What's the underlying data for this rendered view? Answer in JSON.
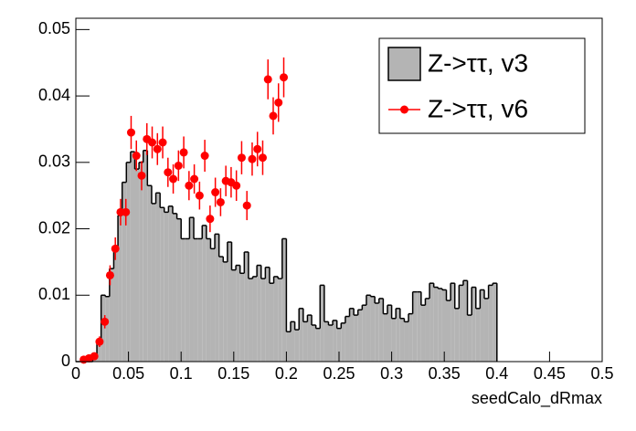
{
  "chart_data": {
    "type": "histogram",
    "xlabel": "seedCalo_dRmax",
    "xlim": [
      0,
      0.5
    ],
    "ylim": [
      0,
      0.0517
    ],
    "xticks": [
      0,
      0.05,
      0.1,
      0.15,
      0.2,
      0.25,
      0.3,
      0.35,
      0.4,
      0.45,
      0.5
    ],
    "yticks": [
      0,
      0.01,
      0.02,
      0.03,
      0.04,
      0.05
    ],
    "series": [
      {
        "name": "Z->ττ, v3",
        "type": "histogram",
        "color": "#b4b4b4",
        "bins": [
          0,
          0.004,
          0.008,
          0.012,
          0.016,
          0.02,
          0.024,
          0.028,
          0.032,
          0.036,
          0.04,
          0.044,
          0.048,
          0.052,
          0.056,
          0.06,
          0.064,
          0.068,
          0.072,
          0.076,
          0.08,
          0.084,
          0.088,
          0.092,
          0.096,
          0.1,
          0.104,
          0.108,
          0.112,
          0.116,
          0.12,
          0.124,
          0.128,
          0.132,
          0.136,
          0.14,
          0.144,
          0.148,
          0.152,
          0.156,
          0.16,
          0.164,
          0.168,
          0.172,
          0.176,
          0.18,
          0.184,
          0.188,
          0.192,
          0.196,
          0.2,
          0.204,
          0.208,
          0.212,
          0.216,
          0.22,
          0.224,
          0.228,
          0.232,
          0.236,
          0.24,
          0.244,
          0.248,
          0.252,
          0.256,
          0.26,
          0.264,
          0.268,
          0.272,
          0.276,
          0.28,
          0.284,
          0.288,
          0.292,
          0.296,
          0.3,
          0.304,
          0.308,
          0.312,
          0.316,
          0.32,
          0.324,
          0.328,
          0.332,
          0.336,
          0.34,
          0.344,
          0.348,
          0.352,
          0.356,
          0.36,
          0.364,
          0.368,
          0.372,
          0.376,
          0.38,
          0.384,
          0.388,
          0.392,
          0.396,
          0.4
        ],
        "values": [
          0,
          0,
          0,
          0,
          0.001,
          0.003,
          0.01,
          0.0098,
          0.014,
          0.017,
          0.022,
          0.027,
          0.03,
          0.0316,
          0.029,
          0.03,
          0.0318,
          0.0265,
          0.0238,
          0.0254,
          0.0232,
          0.0225,
          0.0234,
          0.0223,
          0.0215,
          0.0185,
          0.0185,
          0.0217,
          0.0185,
          0.0185,
          0.0205,
          0.0185,
          0.017,
          0.0192,
          0.0158,
          0.015,
          0.018,
          0.0138,
          0.0145,
          0.0133,
          0.0165,
          0.0125,
          0.0128,
          0.0145,
          0.0125,
          0.0142,
          0.0118,
          0.0128,
          0.0125,
          0.0185,
          0.0045,
          0.006,
          0.0048,
          0.008,
          0.006,
          0.007,
          0.0055,
          0.005,
          0.0115,
          0.006,
          0.0055,
          0.0062,
          0.005,
          0.0058,
          0.0068,
          0.008,
          0.007,
          0.0078,
          0.0085,
          0.01,
          0.0098,
          0.0088,
          0.0095,
          0.0072,
          0.0085,
          0.0065,
          0.008,
          0.0065,
          0.006,
          0.0072,
          0.0105,
          0.0105,
          0.0085,
          0.0095,
          0.0118,
          0.0112,
          0.011,
          0.0108,
          0.0092,
          0.0118,
          0.008,
          0.0115,
          0.0122,
          0.007,
          0.0112,
          0.008,
          0.0108,
          0.0095,
          0.0115,
          0.0118
        ]
      },
      {
        "name": "Z->ττ, v6",
        "type": "errorbar",
        "color": "#ff0000",
        "x": [
          0.0075,
          0.0125,
          0.0175,
          0.0225,
          0.0275,
          0.0325,
          0.0375,
          0.0425,
          0.0475,
          0.0525,
          0.0575,
          0.0625,
          0.0675,
          0.0725,
          0.0775,
          0.0825,
          0.0875,
          0.0925,
          0.0975,
          0.1025,
          0.1075,
          0.1125,
          0.1175,
          0.1225,
          0.1275,
          0.1325,
          0.1375,
          0.1425,
          0.1475,
          0.1525,
          0.1575,
          0.1625,
          0.1675,
          0.1725,
          0.1775,
          0.1825,
          0.1875,
          0.1925,
          0.1975
        ],
        "values": [
          0.0003,
          0.0005,
          0.0008,
          0.003,
          0.006,
          0.013,
          0.017,
          0.0225,
          0.0225,
          0.0345,
          0.031,
          0.028,
          0.0335,
          0.033,
          0.032,
          0.033,
          0.0285,
          0.0275,
          0.0295,
          0.0315,
          0.0265,
          0.0275,
          0.025,
          0.031,
          0.0215,
          0.0255,
          0.024,
          0.0272,
          0.027,
          0.0265,
          0.0307,
          0.0235,
          0.0305,
          0.032,
          0.0307,
          0.0425,
          0.037,
          0.039,
          0.0428
        ],
        "errors": [
          0.0002,
          0.0003,
          0.0004,
          0.0008,
          0.001,
          0.0015,
          0.0017,
          0.002,
          0.002,
          0.0025,
          0.0023,
          0.0022,
          0.0024,
          0.0024,
          0.0024,
          0.0024,
          0.0022,
          0.0022,
          0.0023,
          0.0024,
          0.0022,
          0.0022,
          0.0021,
          0.0024,
          0.002,
          0.0022,
          0.0021,
          0.0023,
          0.0023,
          0.0023,
          0.0025,
          0.0022,
          0.0025,
          0.0026,
          0.0026,
          0.003,
          0.0028,
          0.0029,
          0.003
        ]
      }
    ]
  }
}
